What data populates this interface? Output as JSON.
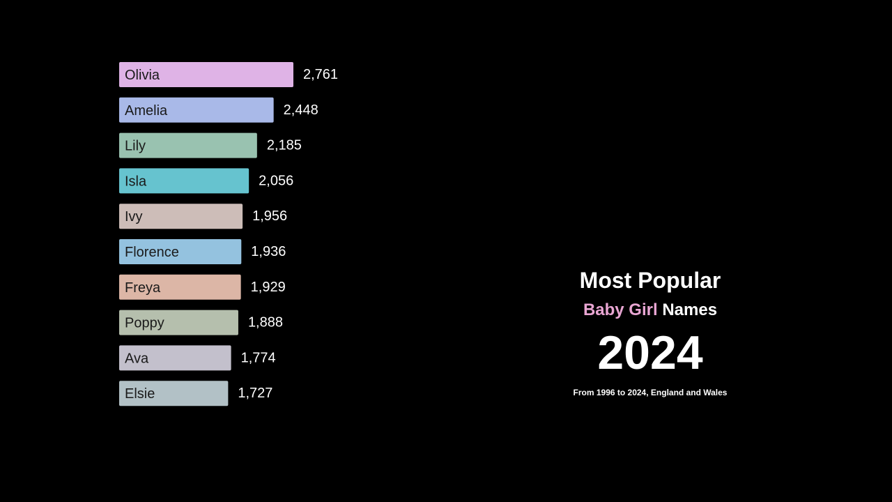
{
  "chart_data": {
    "type": "bar",
    "orientation": "horizontal",
    "categories": [
      "Olivia",
      "Amelia",
      "Lily",
      "Isla",
      "Ivy",
      "Florence",
      "Freya",
      "Poppy",
      "Ava",
      "Elsie"
    ],
    "values": [
      2761,
      2448,
      2185,
      2056,
      1956,
      1936,
      1929,
      1888,
      1774,
      1727
    ],
    "value_labels": [
      "2,761",
      "2,448",
      "2,185",
      "2,056",
      "1,956",
      "1,936",
      "1,929",
      "1,888",
      "1,774",
      "1,727"
    ],
    "colors": [
      "#dfb3e6",
      "#a9b9e8",
      "#99c2b0",
      "#66c3cf",
      "#cdbdb8",
      "#94c2df",
      "#dcb6a6",
      "#b5bfad",
      "#c3c0cc",
      "#b2c1c6"
    ],
    "xlim": [
      0,
      2761
    ],
    "grid": false,
    "legend": "none"
  },
  "title": {
    "line1": "Most Popular",
    "line2_accent": "Baby Girl",
    "line2_rest": " Names",
    "year": "2024",
    "subtitle": "From 1996 to 2024, England and Wales"
  },
  "colors": {
    "background": "#000000",
    "accent": "#e9a6d3",
    "text": "#ffffff"
  }
}
